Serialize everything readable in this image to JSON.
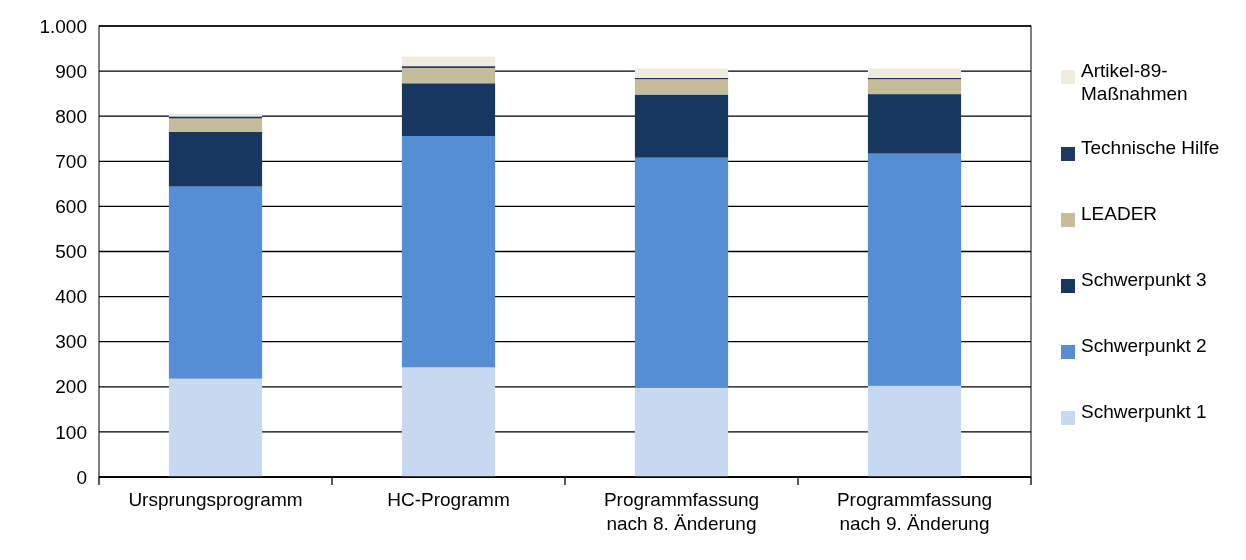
{
  "chart_data": {
    "type": "bar",
    "stacked": true,
    "categories": [
      "Ursprungsprogramm",
      "HC-Programm",
      "Programmfassung nach 8. Änderung",
      "Programmfassung nach 9. Änderung"
    ],
    "series": [
      {
        "name": "Schwerpunkt 1",
        "color": "#c6d9f1",
        "values": [
          218,
          243,
          198,
          202
        ]
      },
      {
        "name": "Schwerpunkt 2",
        "color": "#558ed5",
        "values": [
          426,
          513,
          510,
          515
        ]
      },
      {
        "name": "Schwerpunkt 3",
        "color": "#17375e",
        "values": [
          121,
          117,
          140,
          132
        ]
      },
      {
        "name": "LEADER",
        "color": "#c4bd97",
        "values": [
          30,
          34,
          34,
          33
        ]
      },
      {
        "name": "Technische Hilfe",
        "color": "#1f3864",
        "values": [
          4,
          4,
          3,
          3
        ]
      },
      {
        "name": "Artikel-89-Maßnahmen",
        "color": "#eeece1",
        "values": [
          6,
          21,
          21,
          21
        ]
      }
    ],
    "ylim": [
      0,
      1000
    ],
    "yticks": [
      0,
      100,
      200,
      300,
      400,
      500,
      600,
      700,
      800,
      900,
      {
        "value": 1000,
        "label": "1.000"
      }
    ],
    "grid": "y",
    "legend": "right"
  }
}
